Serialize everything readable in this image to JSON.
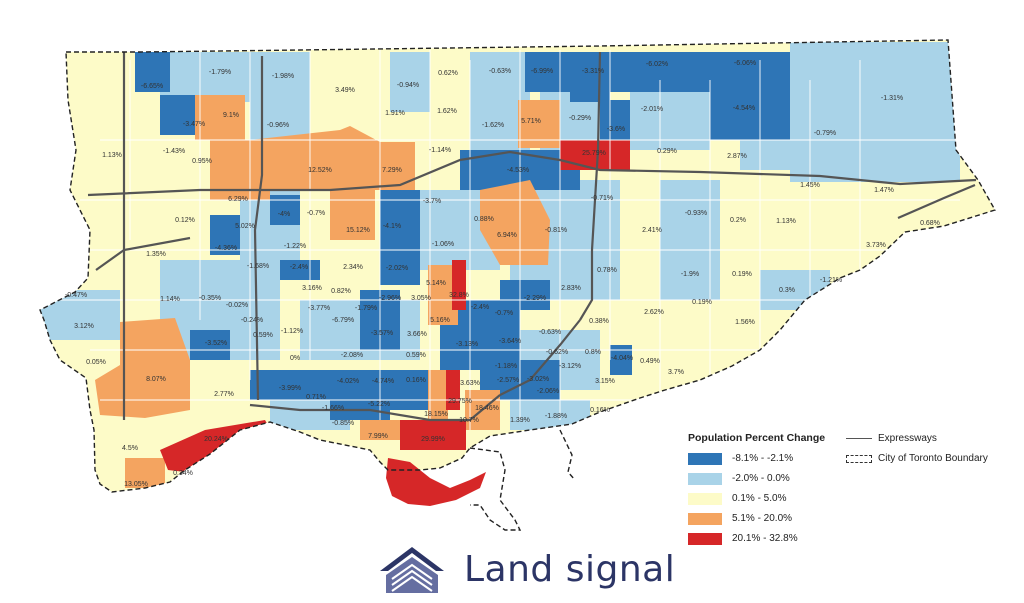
{
  "colors": {
    "c1": "#2e75b6",
    "c2": "#a9d3e8",
    "c3": "#fdfbc8",
    "c4": "#f4a460",
    "c5": "#d62728",
    "expressway": "#555555",
    "boundary": "#222222",
    "logo": "#2c3566"
  },
  "legend": {
    "title": "Population Percent Change",
    "classes": [
      {
        "label": "-8.1% - -2.1%",
        "color": "#2e75b6"
      },
      {
        "label": "-2.0% - 0.0%",
        "color": "#a9d3e8"
      },
      {
        "label": "0.1% - 5.0%",
        "color": "#fdfbc8"
      },
      {
        "label": "5.1% - 20.0%",
        "color": "#f4a460"
      },
      {
        "label": "20.1% - 32.8%",
        "color": "#d62728"
      }
    ],
    "expressways_label": "Expressways",
    "boundary_label": "City of Toronto Boundary"
  },
  "logo": {
    "text": "Land signal",
    "icon": "land-signal-logo-icon"
  },
  "map_labels": [
    "-6.65%",
    "-1.79%",
    "-1.98%",
    "3.49%",
    "-0.94%",
    "0.62%",
    "-0.63%",
    "-6.99%",
    "-3.31%",
    "-6.02%",
    "-6.06%",
    "-1.31%",
    "-3.47%",
    "9.1%",
    "-0.96%",
    "1.91%",
    "1.62%",
    "-1.62%",
    "5.71%",
    "-0.29%",
    "-3.6%",
    "-2.01%",
    "-4.54%",
    "-0.79%",
    "1.13%",
    "-1.43%",
    "0.95%",
    "12.52%",
    "7.29%",
    "-1.14%",
    "-4.53%",
    "25.79%",
    "0.29%",
    "2.87%",
    "1.45%",
    "1.47%",
    "6.29%",
    "-4%",
    "-0.7%",
    "-4.1%",
    "-3.7%",
    "0.88%",
    "-0.71%",
    "-0.93%",
    "0.2%",
    "1.13%",
    "0.68%",
    "0.12%",
    "5.02%",
    "-4.36%",
    "-1.22%",
    "15.12%",
    "-1.06%",
    "6.94%",
    "-0.81%",
    "2.41%",
    "3.73%",
    "1.35%",
    "-1.68%",
    "-2.4%",
    "2.34%",
    "-2.02%",
    "0.78%",
    "-1.9%",
    "0.19%",
    "-1.21%",
    "-0.47%",
    "1.14%",
    "-0.35%",
    "-0.02%",
    "-0.24%",
    "3.16%",
    "0.82%",
    "-2.96%",
    "3.05%",
    "5.14%",
    "32.8%",
    "-2.4%",
    "-2.29%",
    "2.83%",
    "0.19%",
    "0.3%",
    "3.12%",
    "-3.77%",
    "-6.79%",
    "-1.79%",
    "5.16%",
    "-0.7%",
    "2.62%",
    "-3.52%",
    "0.59%",
    "-1.12%",
    "-3.57%",
    "3.66%",
    "-3.13%",
    "-3.64%",
    "-0.63%",
    "0.38%",
    "1.56%",
    "0.05%",
    "0%",
    "-2.08%",
    "0.59%",
    "-0.62%",
    "0.8%",
    "-4.04%",
    "0.49%",
    "8.07%",
    "-3.99%",
    "-4.02%",
    "-4.74%",
    "0.16%",
    "3.63%",
    "-1.18%",
    "-2.57%",
    "-3.02%",
    "-3.12%",
    "3.15%",
    "3.7%",
    "2.77%",
    "0.71%",
    "-1.66%",
    "-5.22%",
    "29.75%",
    "18.46%",
    "-2.06%",
    "0.16%",
    "-0.85%",
    "18.15%",
    "10.7%",
    "1.39%",
    "-1.88%",
    "20.24%",
    "7.99%",
    "29.99%",
    "4.5%",
    "0.34%",
    "13.05%"
  ]
}
